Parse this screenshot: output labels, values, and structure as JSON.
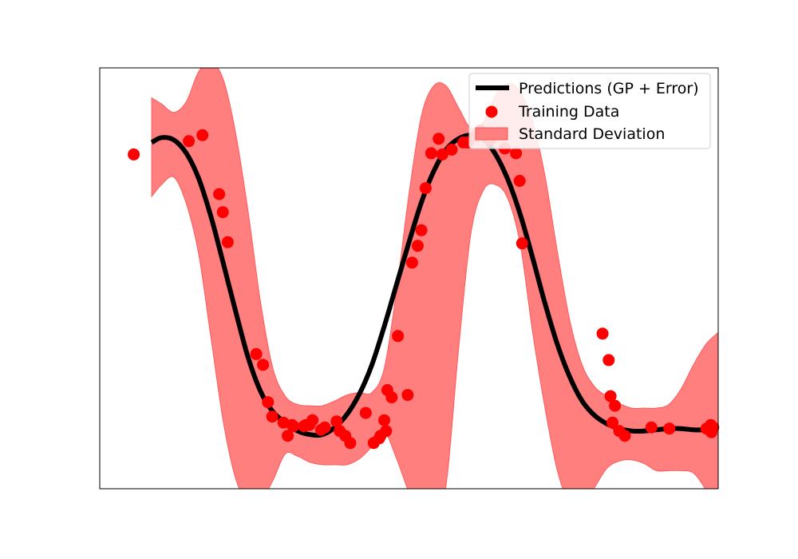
{
  "chart_data": {
    "type": "scatter",
    "title": "",
    "xlabel": "",
    "ylabel": "",
    "xlim": [
      0,
      100
    ],
    "ylim": [
      -1.75,
      1.75
    ],
    "grid": false,
    "axes_ticks": false,
    "legend": {
      "position": "top-right",
      "entries": [
        {
          "label": "Predictions (GP + Error)",
          "kind": "line",
          "color": "#000000"
        },
        {
          "label": "Training Data",
          "kind": "marker",
          "color": "#ff0000"
        },
        {
          "label": "Standard Deviation",
          "kind": "patch",
          "color": "#ff7f7f"
        }
      ]
    },
    "series": [
      {
        "name": "Predictions (GP + Error)",
        "kind": "line",
        "color": "#000000",
        "x": [
          8.4,
          10,
          12,
          14,
          16,
          18,
          20,
          22,
          24,
          26,
          28,
          30,
          32,
          34,
          36,
          38,
          40,
          42,
          44,
          46,
          48,
          50,
          52,
          54,
          56,
          58,
          60,
          62,
          64,
          66,
          68,
          70,
          72,
          74,
          76,
          78,
          80,
          82,
          84,
          86,
          88,
          90,
          92,
          94,
          96,
          98,
          100
        ],
        "y": [
          1.13,
          1.17,
          1.15,
          1.04,
          0.83,
          0.51,
          0.12,
          -0.28,
          -0.66,
          -0.94,
          -1.11,
          -1.2,
          -1.27,
          -1.3,
          -1.3,
          -1.24,
          -1.13,
          -0.96,
          -0.72,
          -0.4,
          -0.05,
          0.3,
          0.63,
          0.89,
          1.07,
          1.16,
          1.19,
          1.16,
          1.03,
          0.82,
          0.53,
          0.17,
          -0.21,
          -0.55,
          -0.82,
          -1.02,
          -1.14,
          -1.21,
          -1.25,
          -1.27,
          -1.27,
          -1.26,
          -1.25,
          -1.25,
          -1.26,
          -1.26,
          -1.25
        ]
      },
      {
        "name": "Standard Deviation",
        "kind": "band",
        "color": "#ff7f7f",
        "x": [
          8.4,
          10,
          12,
          14,
          16,
          18,
          20,
          22,
          24,
          26,
          28,
          30,
          32,
          34,
          36,
          38,
          40,
          42,
          44,
          46,
          48,
          50,
          52,
          54,
          56,
          58,
          60,
          62,
          64,
          66,
          68,
          70,
          72,
          74,
          76,
          78,
          80,
          82,
          84,
          86,
          88,
          90,
          92,
          94,
          96,
          98,
          100
        ],
        "upper": [
          1.5,
          1.45,
          1.38,
          1.47,
          1.72,
          1.8,
          1.65,
          1.2,
          0.55,
          -0.2,
          -0.75,
          -0.98,
          -1.05,
          -1.06,
          -1.06,
          -1.02,
          -0.97,
          -0.95,
          -0.95,
          -0.75,
          -0.1,
          0.7,
          1.35,
          1.6,
          1.6,
          1.42,
          1.25,
          1.3,
          1.52,
          1.62,
          1.55,
          1.3,
          0.85,
          0.22,
          -0.35,
          -0.72,
          -0.9,
          -0.98,
          -1.04,
          -1.08,
          -1.08,
          -1.08,
          -1.05,
          -0.92,
          -0.72,
          -0.55,
          -0.45
        ],
        "lower": [
          0.68,
          0.78,
          0.84,
          0.62,
          0.2,
          -0.5,
          -1.2,
          -1.67,
          -1.87,
          -1.85,
          -1.68,
          -1.46,
          -1.48,
          -1.53,
          -1.55,
          -1.55,
          -1.55,
          -1.5,
          -1.4,
          -1.28,
          -1.5,
          -1.78,
          -1.97,
          -2.03,
          -1.72,
          -0.6,
          0.37,
          0.73,
          0.78,
          0.66,
          0.28,
          -0.45,
          -1.08,
          -1.6,
          -1.88,
          -1.9,
          -1.74,
          -1.58,
          -1.52,
          -1.51,
          -1.54,
          -1.6,
          -1.6,
          -1.6,
          -1.62,
          -1.76,
          -1.97
        ]
      },
      {
        "name": "Training Data",
        "kind": "scatter",
        "color": "#ff0000",
        "x": [
          5.5,
          14.4,
          16.6,
          19.3,
          19.9,
          20.7,
          25.3,
          26.4,
          27.2,
          27.9,
          29.7,
          30.4,
          31.1,
          31.3,
          33.0,
          33.3,
          33.9,
          34.4,
          35.8,
          36.4,
          38.3,
          38.8,
          39.7,
          40.5,
          43.0,
          44.3,
          45.2,
          45.4,
          46.0,
          46.3,
          46.5,
          47.2,
          48.2,
          49.8,
          50.5,
          51.4,
          52.0,
          52.7,
          53.6,
          54.8,
          55.4,
          56.9,
          58.8,
          59.5,
          60.8,
          61.5,
          63.1,
          65.5,
          67.3,
          67.9,
          68.3,
          81.3,
          82.3,
          82.6,
          82.9,
          83.3,
          84.0,
          84.9,
          89.2,
          92.1,
          98.1,
          98.8,
          98.9,
          99.2
        ]
      }
    ],
    "training_data_points": [
      [
        5.5,
        1.03
      ],
      [
        14.4,
        1.14
      ],
      [
        16.6,
        1.19
      ],
      [
        19.3,
        0.7
      ],
      [
        19.9,
        0.55
      ],
      [
        20.7,
        0.3
      ],
      [
        25.3,
        -0.63
      ],
      [
        26.4,
        -0.72
      ],
      [
        27.2,
        -1.03
      ],
      [
        27.9,
        -1.15
      ],
      [
        29.7,
        -1.2
      ],
      [
        30.4,
        -1.31
      ],
      [
        31.1,
        -1.22
      ],
      [
        31.3,
        -1.23
      ],
      [
        33.0,
        -1.23
      ],
      [
        33.3,
        -1.22
      ],
      [
        33.9,
        -1.22
      ],
      [
        34.4,
        -1.18
      ],
      [
        35.8,
        -1.26
      ],
      [
        36.4,
        -1.24
      ],
      [
        38.3,
        -1.19
      ],
      [
        38.8,
        -1.27
      ],
      [
        39.7,
        -1.31
      ],
      [
        40.5,
        -1.37
      ],
      [
        43.0,
        -1.12
      ],
      [
        44.3,
        -1.37
      ],
      [
        45.2,
        -1.33
      ],
      [
        45.4,
        -1.31
      ],
      [
        46.0,
        -1.18
      ],
      [
        46.3,
        -1.27
      ],
      [
        46.5,
        -0.93
      ],
      [
        47.2,
        -0.99
      ],
      [
        48.2,
        -0.48
      ],
      [
        49.8,
        -0.97
      ],
      [
        50.5,
        0.13
      ],
      [
        51.4,
        0.27
      ],
      [
        52.0,
        0.4
      ],
      [
        52.7,
        0.75
      ],
      [
        53.6,
        1.04
      ],
      [
        54.8,
        1.16
      ],
      [
        55.4,
        1.03
      ],
      [
        56.9,
        1.07
      ],
      [
        58.8,
        1.13
      ],
      [
        59.5,
        1.13
      ],
      [
        60.8,
        1.18
      ],
      [
        61.5,
        1.23
      ],
      [
        63.1,
        1.15
      ],
      [
        65.5,
        1.08
      ],
      [
        67.3,
        1.04
      ],
      [
        67.9,
        0.81
      ],
      [
        68.3,
        0.29
      ],
      [
        81.3,
        -0.46
      ],
      [
        82.3,
        -0.68
      ],
      [
        82.6,
        -0.98
      ],
      [
        82.9,
        -1.2
      ],
      [
        83.3,
        -1.06
      ],
      [
        84.0,
        -1.27
      ],
      [
        84.9,
        -1.31
      ],
      [
        89.2,
        -1.24
      ],
      [
        92.1,
        -1.25
      ],
      [
        98.1,
        -1.25
      ],
      [
        98.8,
        -1.22
      ],
      [
        98.9,
        -1.28
      ],
      [
        99.2,
        -1.24
      ]
    ]
  }
}
